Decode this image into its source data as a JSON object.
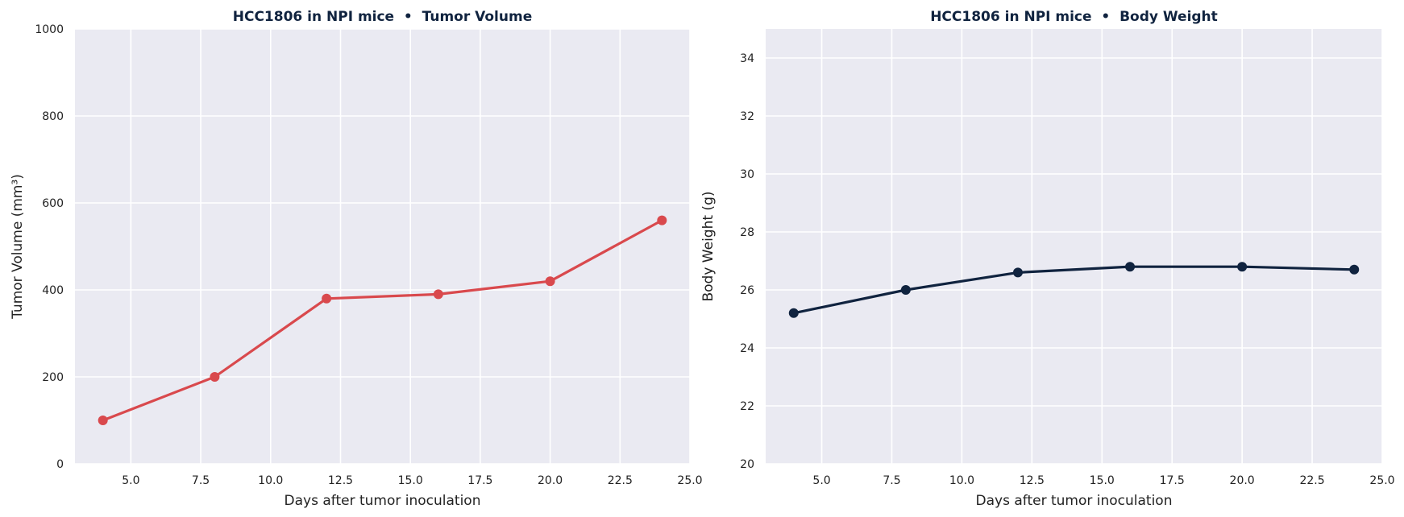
{
  "chart_data": [
    {
      "type": "line",
      "title": "HCC1806 in NPI mice  •  Tumor Volume",
      "xlabel": "Days after tumor inoculation",
      "ylabel": "Tumor Volume (mm³)",
      "xlim": [
        3,
        25
      ],
      "ylim": [
        0,
        1000
      ],
      "xticks": [
        5.0,
        7.5,
        10.0,
        12.5,
        15.0,
        17.5,
        20.0,
        22.5,
        25.0
      ],
      "yticks": [
        0,
        200,
        400,
        600,
        800,
        1000
      ],
      "grid": true,
      "color": "#d9494d",
      "series": [
        {
          "x": [
            4,
            8,
            12,
            16,
            20,
            24
          ],
          "values": [
            100,
            200,
            380,
            390,
            420,
            560
          ]
        }
      ]
    },
    {
      "type": "line",
      "title": "HCC1806 in NPI mice  •  Body Weight",
      "xlabel": "Days after tumor inoculation",
      "ylabel": "Body Weight (g)",
      "xlim": [
        3,
        25
      ],
      "ylim": [
        20,
        35
      ],
      "xticks": [
        5.0,
        7.5,
        10.0,
        12.5,
        15.0,
        17.5,
        20.0,
        22.5,
        25.0
      ],
      "yticks": [
        20,
        22,
        24,
        26,
        28,
        30,
        32,
        34
      ],
      "grid": true,
      "color": "#10233f",
      "series": [
        {
          "x": [
            4,
            8,
            12,
            16,
            20,
            24
          ],
          "values": [
            25.2,
            26.0,
            26.6,
            26.8,
            26.8,
            26.7
          ]
        }
      ]
    }
  ]
}
